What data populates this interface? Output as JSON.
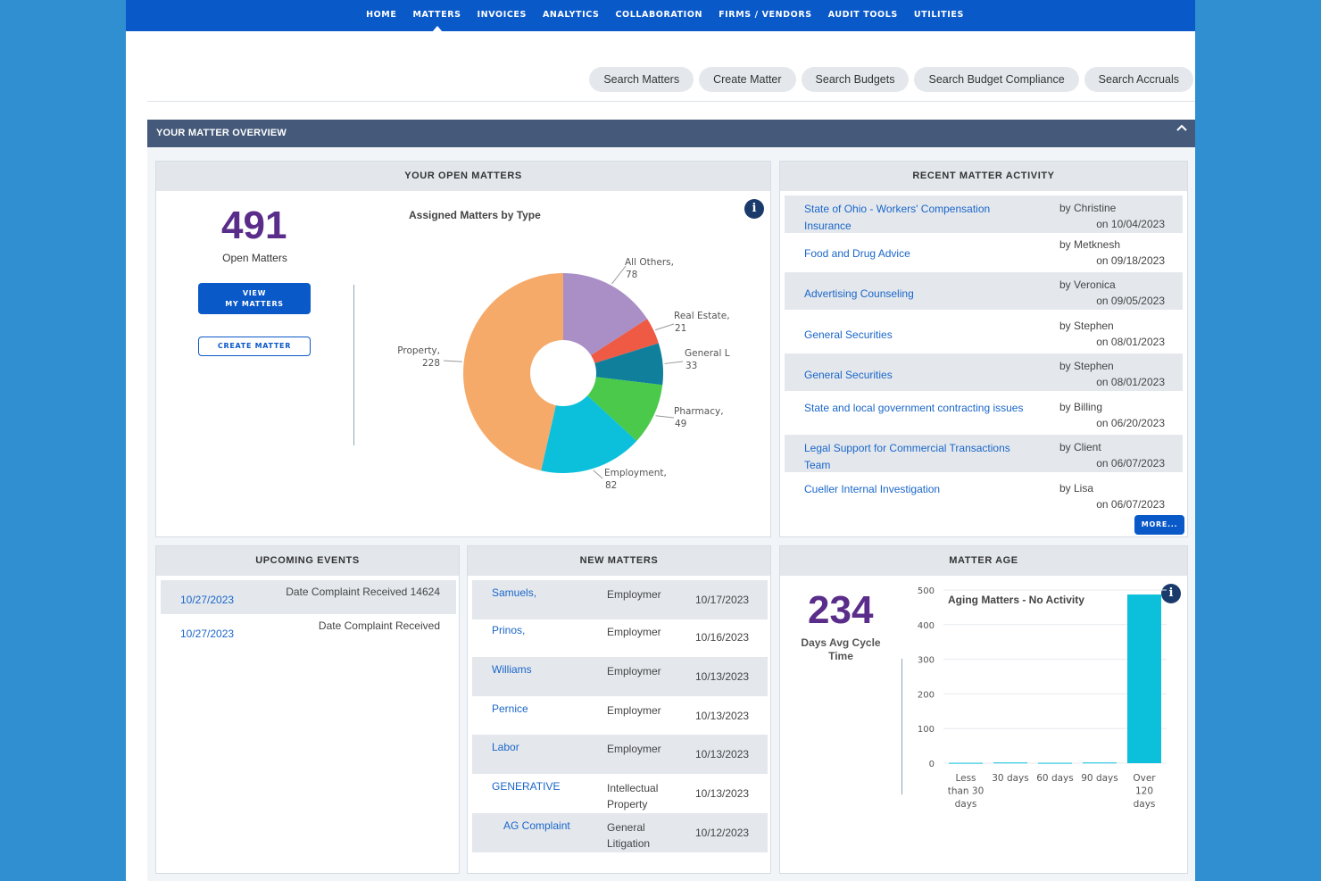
{
  "nav": {
    "items": [
      {
        "label": "HOME",
        "active": false
      },
      {
        "label": "MATTERS",
        "active": true
      },
      {
        "label": "INVOICES",
        "active": false
      },
      {
        "label": "ANALYTICS",
        "active": false
      },
      {
        "label": "COLLABORATION",
        "active": false
      },
      {
        "label": "FIRMS / VENDORS",
        "active": false
      },
      {
        "label": "AUDIT TOOLS",
        "active": false
      },
      {
        "label": "UTILITIES",
        "active": false
      }
    ]
  },
  "actions": [
    "Search Matters",
    "Create Matter",
    "Search Budgets",
    "Search Budget Compliance",
    "Search Accruals"
  ],
  "overview": {
    "title": "YOUR MATTER OVERVIEW"
  },
  "open_matters": {
    "title": "YOUR OPEN MATTERS",
    "count": "491",
    "count_label": "Open Matters",
    "view_btn_line1": "VIEW",
    "view_btn_line2": "MY MATTERS",
    "create_btn": "CREATE MATTER",
    "chart_title": "Assigned Matters by Type"
  },
  "recent_activity": {
    "title": "RECENT MATTER ACTIVITY",
    "more": "MORE...",
    "rows": [
      {
        "title": "State of Ohio - Workers' Compensation Insurance",
        "by": "by Christine",
        "on": "on 10/04/2023"
      },
      {
        "title": "Food and Drug Advice",
        "by": "by Metknesh",
        "on": "on 09/18/2023"
      },
      {
        "title": "Advertising Counseling",
        "by": "by Veronica",
        "on": "on 09/05/2023"
      },
      {
        "title": "General Securities",
        "by": "by Stephen",
        "on": "on 08/01/2023"
      },
      {
        "title": "General Securities",
        "by": "by Stephen",
        "on": "on 08/01/2023"
      },
      {
        "title": "State and local government contracting issues",
        "by": "by Billing",
        "on": "on 06/20/2023"
      },
      {
        "title": "Legal Support for Commercial Transactions Team",
        "by": "by Client",
        "on": "on 06/07/2023"
      },
      {
        "title": "Cueller Internal Investigation",
        "by": "by Lisa",
        "on": "on 06/07/2023"
      }
    ]
  },
  "upcoming_events": {
    "title": "UPCOMING EVENTS",
    "rows": [
      {
        "date": "10/27/2023",
        "desc": "Date Complaint Received 14624"
      },
      {
        "date": "10/27/2023",
        "desc": "Date Complaint Received"
      }
    ]
  },
  "new_matters": {
    "title": "NEW MATTERS",
    "rows": [
      {
        "name": "Samuels,",
        "type": "Employmer",
        "date": "10/17/2023"
      },
      {
        "name": "Prinos,",
        "type": "Employmer",
        "date": "10/16/2023"
      },
      {
        "name": "Williams",
        "type": "Employmer",
        "date": "10/13/2023"
      },
      {
        "name": "Pernice",
        "type": "Employmer",
        "date": "10/13/2023"
      },
      {
        "name": "Labor",
        "type": "Employmer",
        "date": "10/13/2023"
      },
      {
        "name": "GENERATIVE",
        "type": "Intellectual Property",
        "date": "10/13/2023"
      },
      {
        "name": "AG Complaint",
        "type": "General Litigation",
        "date": "10/12/2023"
      }
    ]
  },
  "matter_age": {
    "title": "MATTER AGE",
    "count": "234",
    "count_label": "Days Avg Cycle Time",
    "chart_title": "Aging Matters - No Activity"
  },
  "chart_data": [
    {
      "type": "pie",
      "title": "Assigned Matters by Type",
      "slices": [
        {
          "label": "All Others,",
          "value": 78,
          "color": "#a98fc6"
        },
        {
          "label": "Real Estate,",
          "value": 21,
          "color": "#ee5a44"
        },
        {
          "label": "General L",
          "value": 33,
          "color": "#0f7f9c"
        },
        {
          "label": "Pharmacy,",
          "value": 49,
          "color": "#4ac94b"
        },
        {
          "label": "Employment,",
          "value": 82,
          "color": "#0cc0dc"
        },
        {
          "label": "Property,",
          "value": 228,
          "color": "#f5aa6a"
        }
      ]
    },
    {
      "type": "bar",
      "title": "Aging Matters - No Activity",
      "categories": [
        "Less than 30 days",
        "30 days",
        "60 days",
        "90 days",
        "Over 120 days"
      ],
      "values": [
        1,
        2,
        1,
        2,
        487
      ],
      "ylim": [
        0,
        500
      ],
      "yticks": [
        0,
        100,
        200,
        300,
        400,
        500
      ],
      "color": "#0cc0dc"
    }
  ]
}
